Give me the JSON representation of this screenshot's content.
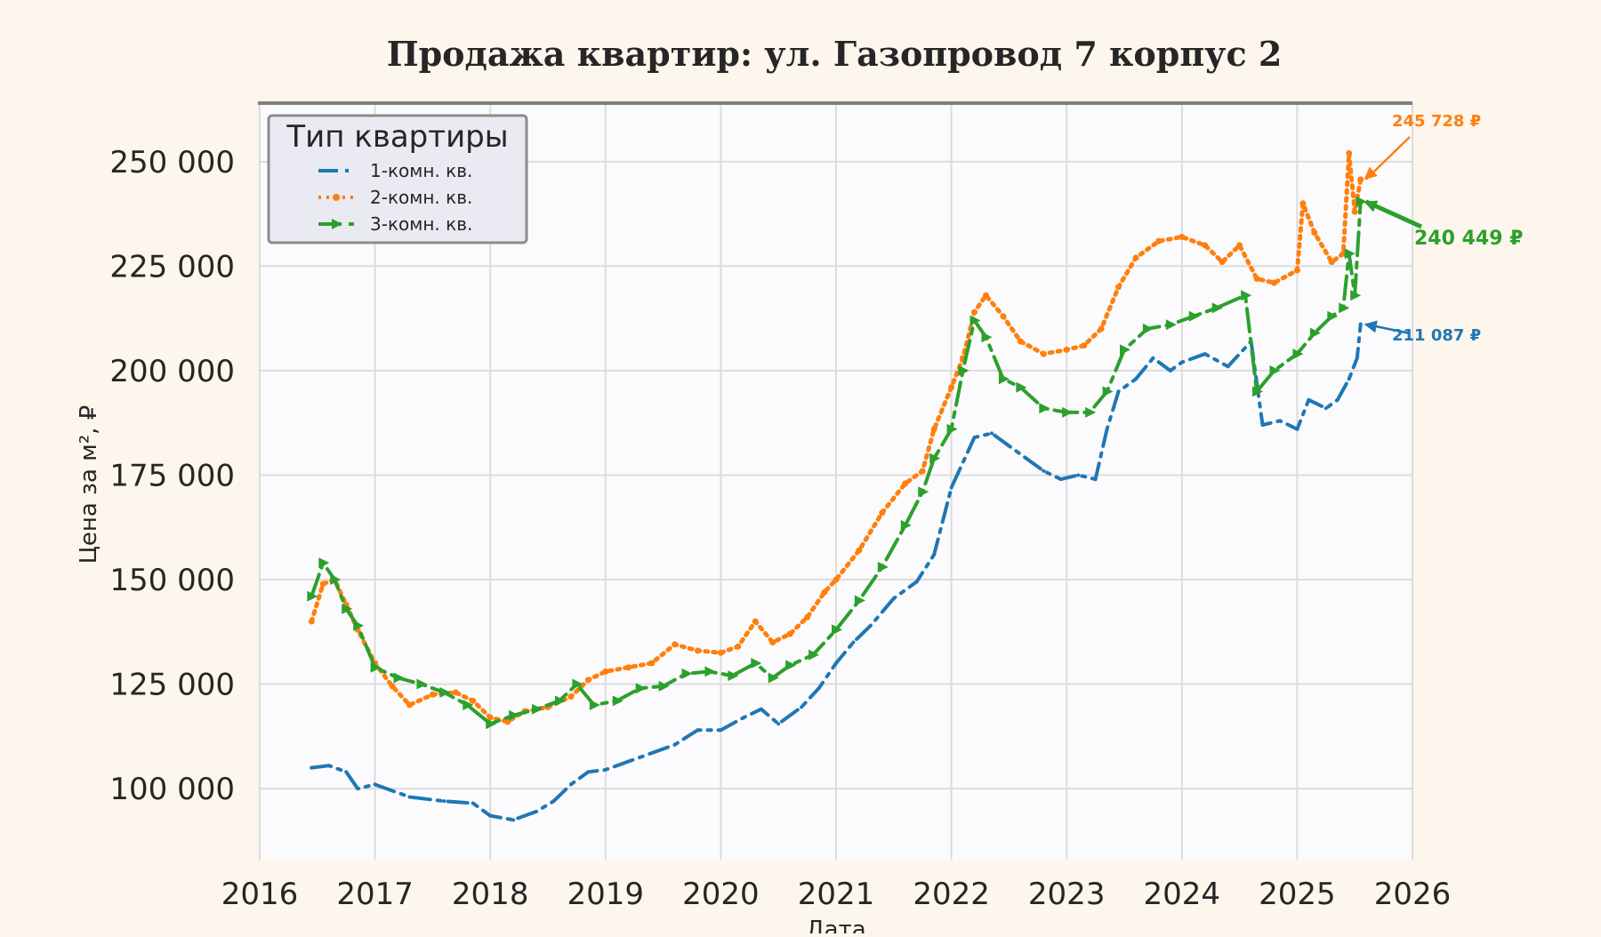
{
  "chart_data": {
    "type": "line",
    "title": "Продажа квартир: ул. Газопровод 7 корпус 2",
    "xlabel": "Дата",
    "ylabel": "Цена за м², ₽",
    "xlim": [
      2016,
      2026
    ],
    "ylim": [
      83000,
      264000
    ],
    "x_ticks": [
      2016,
      2017,
      2018,
      2019,
      2020,
      2021,
      2022,
      2023,
      2024,
      2025,
      2026
    ],
    "x_tick_labels": [
      "2016",
      "2017",
      "2018",
      "2019",
      "2020",
      "2021",
      "2022",
      "2023",
      "2024",
      "2025",
      "2026"
    ],
    "y_ticks": [
      100000,
      125000,
      150000,
      175000,
      200000,
      225000,
      250000
    ],
    "y_tick_labels": [
      "100 000",
      "125 000",
      "150 000",
      "175 000",
      "200 000",
      "225 000",
      "250 000"
    ],
    "grid": true,
    "legend": {
      "title": "Тип квартиры",
      "placement": "top-left"
    },
    "series": [
      {
        "name": "1-комн. кв.",
        "color": "#1f77b4",
        "style": "dashdot",
        "points": [
          [
            2016.45,
            105000
          ],
          [
            2016.6,
            105500
          ],
          [
            2016.75,
            104000
          ],
          [
            2016.85,
            100000
          ],
          [
            2017.0,
            101000
          ],
          [
            2017.3,
            98000
          ],
          [
            2017.6,
            97000
          ],
          [
            2017.85,
            96500
          ],
          [
            2018.0,
            93500
          ],
          [
            2018.2,
            92500
          ],
          [
            2018.4,
            94500
          ],
          [
            2018.55,
            97000
          ],
          [
            2018.7,
            101000
          ],
          [
            2018.85,
            104000
          ],
          [
            2019.0,
            104500
          ],
          [
            2019.3,
            107500
          ],
          [
            2019.6,
            110500
          ],
          [
            2019.8,
            114000
          ],
          [
            2020.0,
            114000
          ],
          [
            2020.2,
            117000
          ],
          [
            2020.35,
            119000
          ],
          [
            2020.5,
            115500
          ],
          [
            2020.7,
            119500
          ],
          [
            2020.85,
            124000
          ],
          [
            2021.0,
            130000
          ],
          [
            2021.15,
            135000
          ],
          [
            2021.3,
            139000
          ],
          [
            2021.5,
            145500
          ],
          [
            2021.7,
            149500
          ],
          [
            2021.85,
            156000
          ],
          [
            2022.0,
            172000
          ],
          [
            2022.2,
            184000
          ],
          [
            2022.35,
            185000
          ],
          [
            2022.5,
            182000
          ],
          [
            2022.65,
            179000
          ],
          [
            2022.8,
            176000
          ],
          [
            2022.95,
            174000
          ],
          [
            2023.1,
            175000
          ],
          [
            2023.25,
            174000
          ],
          [
            2023.35,
            186000
          ],
          [
            2023.45,
            195000
          ],
          [
            2023.6,
            198000
          ],
          [
            2023.75,
            203000
          ],
          [
            2023.9,
            200000
          ],
          [
            2024.0,
            202000
          ],
          [
            2024.2,
            204000
          ],
          [
            2024.4,
            201000
          ],
          [
            2024.6,
            207000
          ],
          [
            2024.7,
            187000
          ],
          [
            2024.85,
            188000
          ],
          [
            2025.0,
            186000
          ],
          [
            2025.1,
            193000
          ],
          [
            2025.25,
            191000
          ],
          [
            2025.35,
            193000
          ],
          [
            2025.45,
            198000
          ],
          [
            2025.52,
            203000
          ],
          [
            2025.55,
            211087
          ]
        ]
      },
      {
        "name": "2-комн. кв.",
        "color": "#ff7f0e",
        "style": "dotted",
        "points": [
          [
            2016.45,
            140000
          ],
          [
            2016.55,
            149000
          ],
          [
            2016.65,
            150000
          ],
          [
            2016.75,
            144000
          ],
          [
            2016.85,
            138000
          ],
          [
            2017.0,
            130000
          ],
          [
            2017.15,
            124500
          ],
          [
            2017.3,
            120000
          ],
          [
            2017.5,
            122500
          ],
          [
            2017.7,
            123000
          ],
          [
            2017.85,
            121000
          ],
          [
            2018.0,
            117000
          ],
          [
            2018.15,
            116000
          ],
          [
            2018.3,
            118500
          ],
          [
            2018.5,
            119500
          ],
          [
            2018.7,
            122000
          ],
          [
            2018.85,
            126000
          ],
          [
            2019.0,
            128000
          ],
          [
            2019.2,
            129000
          ],
          [
            2019.4,
            130000
          ],
          [
            2019.6,
            134500
          ],
          [
            2019.8,
            133000
          ],
          [
            2020.0,
            132500
          ],
          [
            2020.15,
            134000
          ],
          [
            2020.3,
            140000
          ],
          [
            2020.45,
            135000
          ],
          [
            2020.6,
            137000
          ],
          [
            2020.75,
            141000
          ],
          [
            2020.9,
            147000
          ],
          [
            2021.0,
            150000
          ],
          [
            2021.2,
            157000
          ],
          [
            2021.4,
            166000
          ],
          [
            2021.6,
            173000
          ],
          [
            2021.75,
            176000
          ],
          [
            2021.85,
            186000
          ],
          [
            2022.0,
            196000
          ],
          [
            2022.1,
            203000
          ],
          [
            2022.2,
            214000
          ],
          [
            2022.3,
            218000
          ],
          [
            2022.45,
            213000
          ],
          [
            2022.6,
            207000
          ],
          [
            2022.8,
            204000
          ],
          [
            2023.0,
            205000
          ],
          [
            2023.15,
            206000
          ],
          [
            2023.3,
            210000
          ],
          [
            2023.45,
            220000
          ],
          [
            2023.6,
            227000
          ],
          [
            2023.8,
            231000
          ],
          [
            2024.0,
            232000
          ],
          [
            2024.2,
            230000
          ],
          [
            2024.35,
            226000
          ],
          [
            2024.5,
            230000
          ],
          [
            2024.65,
            222000
          ],
          [
            2024.8,
            221000
          ],
          [
            2025.0,
            224000
          ],
          [
            2025.05,
            240000
          ],
          [
            2025.15,
            233000
          ],
          [
            2025.3,
            226000
          ],
          [
            2025.4,
            228000
          ],
          [
            2025.45,
            252000
          ],
          [
            2025.5,
            238000
          ],
          [
            2025.55,
            245728
          ]
        ]
      },
      {
        "name": "3-комн. кв.",
        "color": "#2ca02c",
        "style": "dashdot-arrow",
        "points": [
          [
            2016.45,
            146000
          ],
          [
            2016.55,
            154000
          ],
          [
            2016.65,
            150000
          ],
          [
            2016.75,
            143000
          ],
          [
            2016.85,
            139000
          ],
          [
            2017.0,
            129000
          ],
          [
            2017.2,
            126500
          ],
          [
            2017.4,
            125000
          ],
          [
            2017.6,
            123000
          ],
          [
            2017.8,
            120000
          ],
          [
            2018.0,
            115500
          ],
          [
            2018.2,
            117500
          ],
          [
            2018.4,
            119000
          ],
          [
            2018.6,
            121000
          ],
          [
            2018.75,
            125000
          ],
          [
            2018.9,
            120000
          ],
          [
            2019.1,
            121000
          ],
          [
            2019.3,
            124000
          ],
          [
            2019.5,
            124500
          ],
          [
            2019.7,
            127500
          ],
          [
            2019.9,
            128000
          ],
          [
            2020.1,
            127000
          ],
          [
            2020.3,
            130000
          ],
          [
            2020.45,
            126500
          ],
          [
            2020.6,
            129500
          ],
          [
            2020.8,
            132000
          ],
          [
            2021.0,
            138000
          ],
          [
            2021.2,
            145000
          ],
          [
            2021.4,
            153000
          ],
          [
            2021.6,
            163000
          ],
          [
            2021.75,
            171000
          ],
          [
            2021.85,
            179000
          ],
          [
            2022.0,
            186000
          ],
          [
            2022.1,
            200000
          ],
          [
            2022.2,
            212000
          ],
          [
            2022.3,
            208000
          ],
          [
            2022.45,
            198000
          ],
          [
            2022.6,
            196000
          ],
          [
            2022.8,
            191000
          ],
          [
            2023.0,
            190000
          ],
          [
            2023.2,
            190000
          ],
          [
            2023.35,
            195000
          ],
          [
            2023.5,
            205000
          ],
          [
            2023.7,
            210000
          ],
          [
            2023.9,
            211000
          ],
          [
            2024.1,
            213000
          ],
          [
            2024.3,
            215000
          ],
          [
            2024.55,
            218000
          ],
          [
            2024.65,
            195000
          ],
          [
            2024.8,
            200000
          ],
          [
            2025.0,
            204000
          ],
          [
            2025.15,
            209000
          ],
          [
            2025.3,
            213000
          ],
          [
            2025.4,
            215000
          ],
          [
            2025.45,
            228000
          ],
          [
            2025.5,
            218000
          ],
          [
            2025.55,
            240449
          ]
        ]
      }
    ],
    "annotations": [
      {
        "text": "245 728 ₽",
        "series": "2-комн. кв.",
        "value": 245728,
        "color": "#ff7f0e"
      },
      {
        "text": "240 449 ₽",
        "series": "3-комн. кв.",
        "value": 240449,
        "color": "#2ca02c"
      },
      {
        "text": "211 087 ₽",
        "series": "1-комн. кв.",
        "value": 211087,
        "color": "#1f77b4"
      }
    ]
  }
}
